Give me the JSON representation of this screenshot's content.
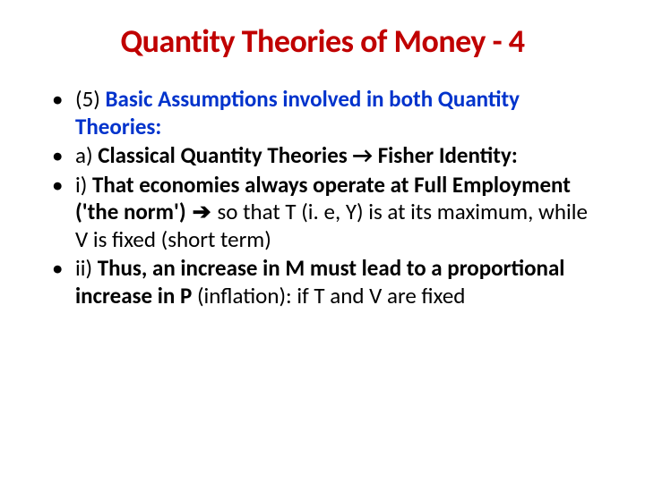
{
  "title": "Quantity Theories of Money - 4",
  "bullets": [
    {
      "prefix": "(5) ",
      "lead": "Basic Assumptions involved in both Quantity Theories:",
      "lead_color": "#0033cc",
      "rest": ""
    },
    {
      "prefix": "a) ",
      "bold_run": "Classical Quantity Theories → Fisher Identity:",
      "rest": ""
    },
    {
      "prefix": "i) ",
      "bold_run": "That economies always operate at Full Employment ('the norm')",
      "arrow": " ➔ ",
      "rest": "so that T (i. e, Y) is at its maximum, while V is fixed (short term)"
    },
    {
      "prefix": "ii) ",
      "bold_run": "Thus, an increase in M must lead to a proportional increase in P ",
      "rest_plain_lead": "(inflation): ",
      "rest": "if T and V are fixed"
    }
  ],
  "colors": {
    "title": "#c00000",
    "body": "#000000",
    "link_blue": "#0033cc",
    "background": "#ffffff"
  },
  "fonts": {
    "title_size_pt": 36,
    "body_size_pt": 25,
    "family": "Calibri"
  }
}
